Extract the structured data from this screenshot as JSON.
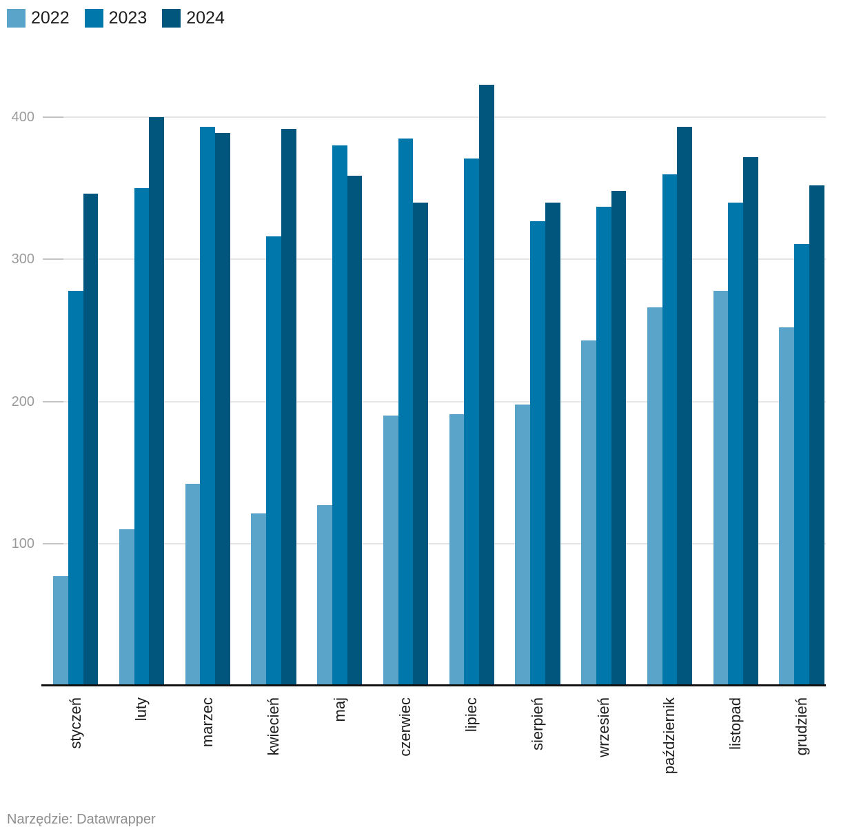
{
  "footer": {
    "text": "Narzędzie: Datawrapper"
  },
  "colors": {
    "series_2022": "#5ba4c9",
    "series_2023": "#0077ab",
    "series_2024": "#00567d",
    "gridline": "#e4e4e4",
    "axis_line": "#111111",
    "y_tick_text": "#9b9b9b",
    "x_tick_text": "#1d1d1d"
  },
  "chart_data": {
    "type": "bar",
    "title": "",
    "xlabel": "",
    "ylabel": "",
    "categories": [
      "styczeń",
      "luty",
      "marzec",
      "kwiecień",
      "maj",
      "czerwiec",
      "lipiec",
      "sierpień",
      "wrzesień",
      "październik",
      "listopad",
      "grudzień"
    ],
    "series": [
      {
        "name": "2022",
        "color": "#5ba4c9",
        "values": [
          77,
          110,
          142,
          121,
          127,
          190,
          191,
          198,
          243,
          266,
          278,
          252
        ]
      },
      {
        "name": "2023",
        "color": "#0077ab",
        "values": [
          278,
          350,
          393,
          316,
          380,
          385,
          371,
          327,
          337,
          360,
          340,
          311
        ]
      },
      {
        "name": "2024",
        "color": "#00567d",
        "values": [
          346,
          400,
          389,
          392,
          359,
          340,
          423,
          340,
          348,
          393,
          372,
          352
        ]
      }
    ],
    "ylim": [
      0,
      440
    ],
    "yticks": [
      100,
      200,
      300,
      400
    ],
    "grid": "horizontal",
    "legend_position": "top-left",
    "x_labels_rotated": true
  }
}
